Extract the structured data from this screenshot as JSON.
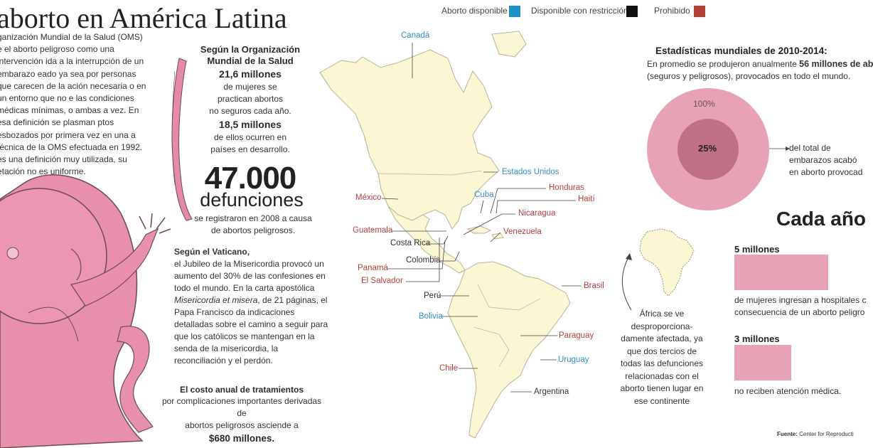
{
  "header": {
    "title": "aborto en América Latina",
    "intro": "ganización Mundial de la Salud (OMS) e el aborto peligroso como una intervención ida a la interrupción de un embarazo eado ya sea por personas que carecen de la ación necesaria o en un entorno que no e las condiciones médicas mínimas, o ambas a vez. En esa definición se plasman ptos esbozados por primera vez en una a técnica de la OMS efectuada en 1992. es una definición muy utilizada, su etación no es uniforme."
  },
  "legend": {
    "items": [
      {
        "label": "Aborto disponible",
        "color": "#1a8fc8"
      },
      {
        "label": "Disponible con restricción",
        "color": "#111111"
      },
      {
        "label": "Prohibido",
        "color": "#b5403a"
      }
    ]
  },
  "oms": {
    "line1": "Según la Organización",
    "line2": "Mundial de la Salud",
    "num1": "21,6 millones",
    "text1a": "de mujeres se",
    "text1b": "practican abortos",
    "text1c": "no seguros cada año.",
    "num2": "18,5 millones",
    "text2a": "de ellos ocurren en",
    "text2b": "países en desarrollo."
  },
  "deaths": {
    "number": "47.000",
    "word": "defunciones",
    "line1": "se registraron en 2008 a causa",
    "line2": "de abortos peligrosos."
  },
  "vatican": {
    "heading": "Según el Vaticano,",
    "p1": "el Jubileo de la Misericordia provocó un aumento del 30% de las confesiones en todo el mundo. En la carta apostólica ",
    "italic1": "Misericordia et misera",
    "p2": ", de 21 páginas, el Papa Francisco da indicaciones detalladas sobre el camino a seguir para que los católicos se mantengan en la senda de la misericordia, la reconciliación y el perdón."
  },
  "cost": {
    "heading": "El costo anual de tratamientos",
    "line1": "por complicaciones importantes derivadas de",
    "line2": "abortos peligrosos asciende a",
    "amount": "$680 millones."
  },
  "map": {
    "countries": [
      {
        "name": "Canadá",
        "status": "blue"
      },
      {
        "name": "Estados Unidos",
        "status": "blue"
      },
      {
        "name": "México",
        "status": "red"
      },
      {
        "name": "Cuba",
        "status": "blue"
      },
      {
        "name": "Honduras",
        "status": "red"
      },
      {
        "name": "Haití",
        "status": "red"
      },
      {
        "name": "Nicaragua",
        "status": "red"
      },
      {
        "name": "Guatemala",
        "status": "red"
      },
      {
        "name": "Venezuela",
        "status": "red"
      },
      {
        "name": "Costa Rica",
        "status": "black"
      },
      {
        "name": "Colombia",
        "status": "black"
      },
      {
        "name": "Panamá",
        "status": "red"
      },
      {
        "name": "El Salvador",
        "status": "red"
      },
      {
        "name": "Brasil",
        "status": "red"
      },
      {
        "name": "Perú",
        "status": "black"
      },
      {
        "name": "Bolivia",
        "status": "blue"
      },
      {
        "name": "Paraguay",
        "status": "red"
      },
      {
        "name": "Uruguay",
        "status": "blue"
      },
      {
        "name": "Chile",
        "status": "red"
      },
      {
        "name": "Argentina",
        "status": "black"
      }
    ]
  },
  "africa": {
    "text": "África se ve desproporciona- damente afectada, ya que dos tercios de todas las defunciones relacionadas con el aborto tienen lugar en ese continente"
  },
  "stats": {
    "title": "Estadísticas mundiales de 2010-2014:",
    "line1_pre": "En promedio se produjeron anualmente ",
    "line1_bold": "56 millones de ab",
    "line2": "(seguros y peligrosos), provocados en todo el mundo.",
    "outer_label": "100%",
    "inner_label": "25%",
    "outer_value": 100,
    "inner_value": 25,
    "outer_color": "#e7a2b6",
    "inner_color": "#bf6f86",
    "callout1": "del total de",
    "callout2": "embarazos acabó",
    "callout3": "en aborto provocad"
  },
  "yearly": {
    "title": "Cada año",
    "m5": "5 millones",
    "m5_text1": "de mujeres ingresan a hospitales c",
    "m5_text2": "consecuencia de un aborto peligro",
    "m3": "3 millones",
    "m3_text": "no reciben atención médica."
  },
  "source": {
    "label": "Fuente:",
    "text": "Center for Reproducti"
  }
}
